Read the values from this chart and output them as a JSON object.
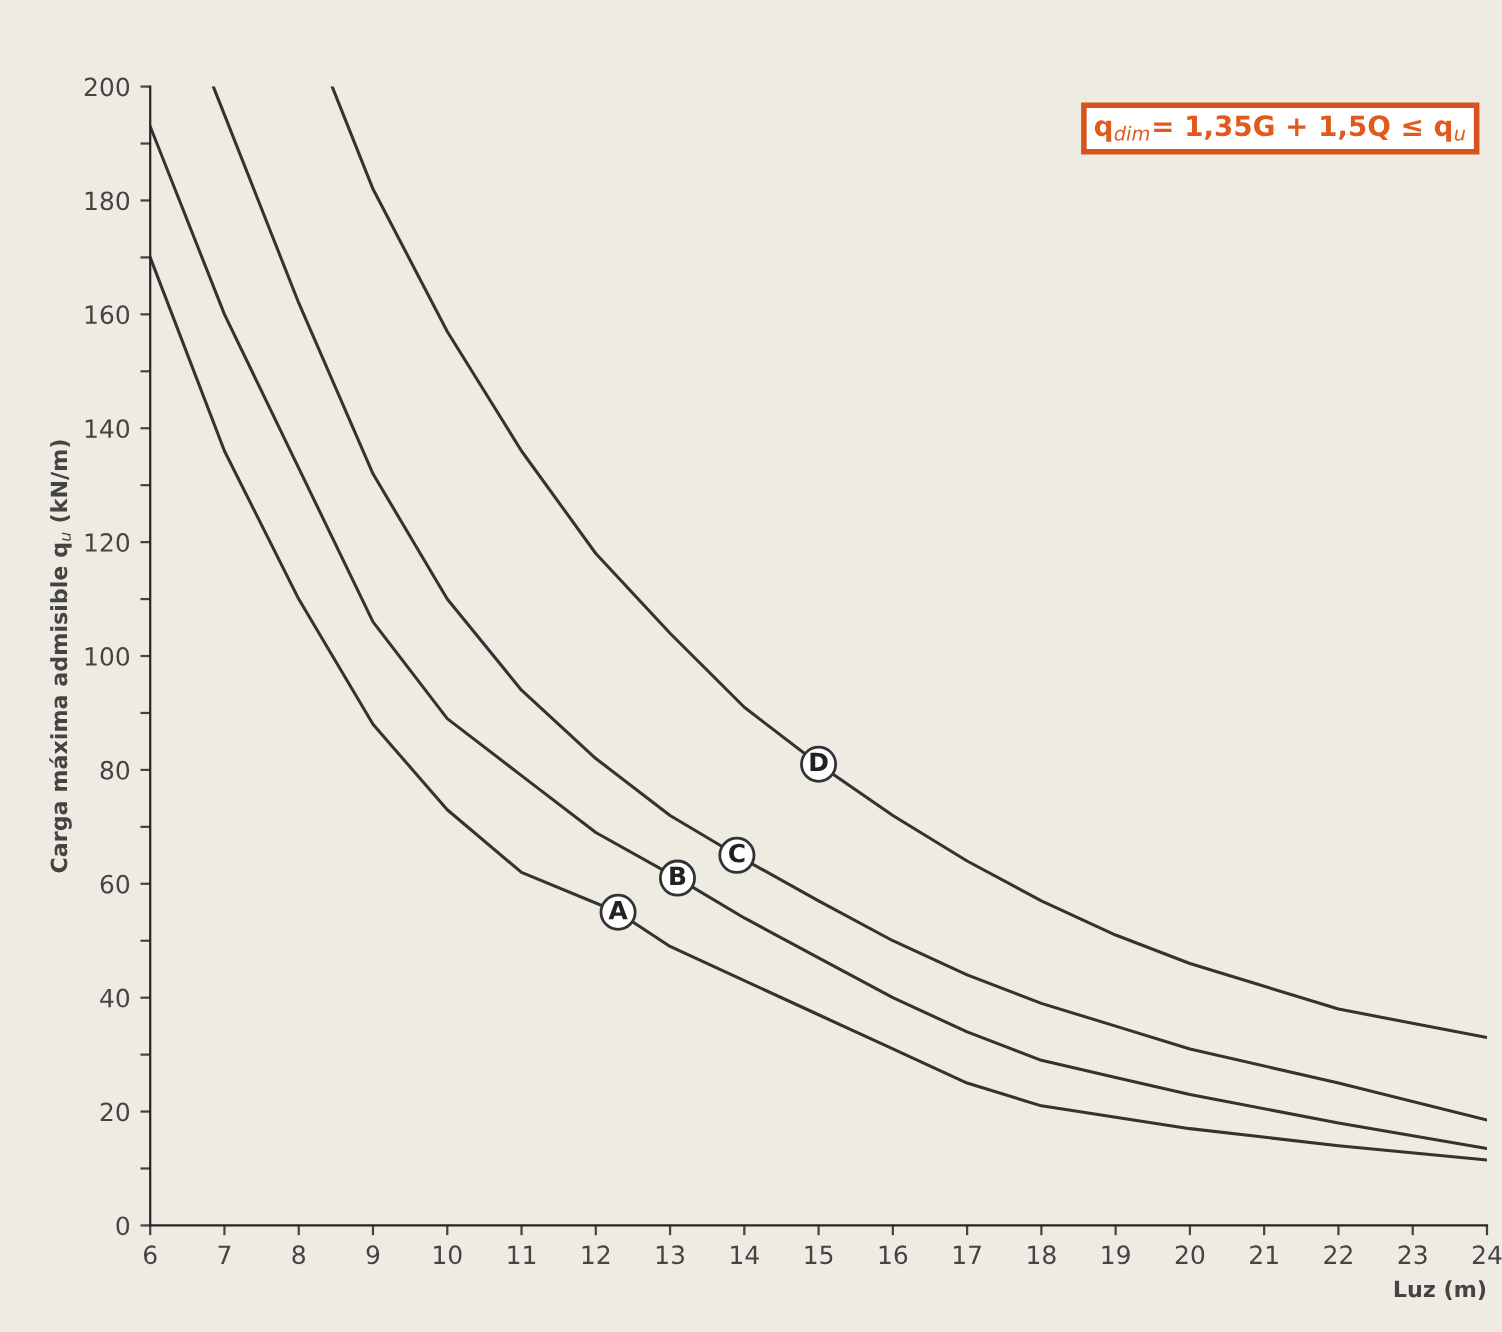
{
  "chart_data": {
    "type": "line",
    "xlabel": "Luz (m)",
    "ylabel": "Carga máxima admisible q$_{u}$ (kN/m)",
    "annotations": [
      "q$_{dim}$= 1,35G + 1,5Q ≤ q$_{u}$"
    ],
    "xlim": [
      6,
      24
    ],
    "xticks": [
      6,
      7,
      8,
      9,
      10,
      11,
      12,
      13,
      14,
      15,
      16,
      17,
      18,
      19,
      20,
      21,
      22,
      23,
      24
    ],
    "ylim": [
      0,
      200
    ],
    "yticks": [
      0,
      {
        "value": 10,
        "label": null
      },
      20,
      {
        "value": 30,
        "label": null
      },
      40,
      {
        "value": 50,
        "label": null
      },
      60,
      {
        "value": 70,
        "label": null
      },
      80,
      {
        "value": 90,
        "label": null
      },
      100,
      {
        "value": 110,
        "label": null
      },
      120,
      {
        "value": 130,
        "label": null
      },
      140,
      {
        "value": 150,
        "label": null
      },
      160,
      {
        "value": 170,
        "label": null
      },
      180,
      {
        "value": 190,
        "label": null
      },
      200
    ],
    "grid": false,
    "legend": false,
    "marker": "none",
    "line_style": "solid",
    "series": [
      {
        "name": "A",
        "color": "#333333",
        "x": [
          6,
          7,
          8,
          9,
          10,
          11,
          12.3,
          13,
          14,
          15,
          16,
          17,
          18,
          19,
          20,
          22,
          24
        ],
        "values": [
          170,
          136,
          110,
          88,
          73,
          62,
          55,
          49,
          43,
          37,
          31,
          25,
          21,
          19,
          17,
          14,
          11.5
        ]
      },
      {
        "name": "B",
        "color": "#333333",
        "x": [
          6,
          7,
          8,
          9,
          10,
          11,
          12,
          13.1,
          14,
          15,
          16,
          17,
          18,
          19,
          20,
          22,
          24
        ],
        "values": [
          193,
          160,
          133,
          106,
          89,
          79,
          69,
          61,
          54,
          47,
          40,
          34,
          29,
          26,
          23,
          18,
          13.5
        ]
      },
      {
        "name": "C",
        "color": "#333333",
        "x": [
          6.85,
          8,
          9,
          10,
          11,
          12,
          13,
          13.9,
          15,
          16,
          17,
          18,
          19,
          20,
          22,
          24
        ],
        "values": [
          200,
          162,
          132,
          110,
          94,
          82,
          72,
          65,
          57,
          50,
          44,
          39,
          35,
          31,
          25,
          18.5
        ]
      },
      {
        "name": "D",
        "color": "#333333",
        "x": [
          8.45,
          9,
          10,
          11,
          12,
          13,
          14,
          15,
          16,
          17,
          18,
          19,
          20,
          22,
          24
        ],
        "values": [
          200,
          182,
          157,
          136,
          118,
          104,
          91,
          81,
          72,
          64,
          57,
          51,
          46,
          38,
          33
        ]
      }
    ]
  }
}
